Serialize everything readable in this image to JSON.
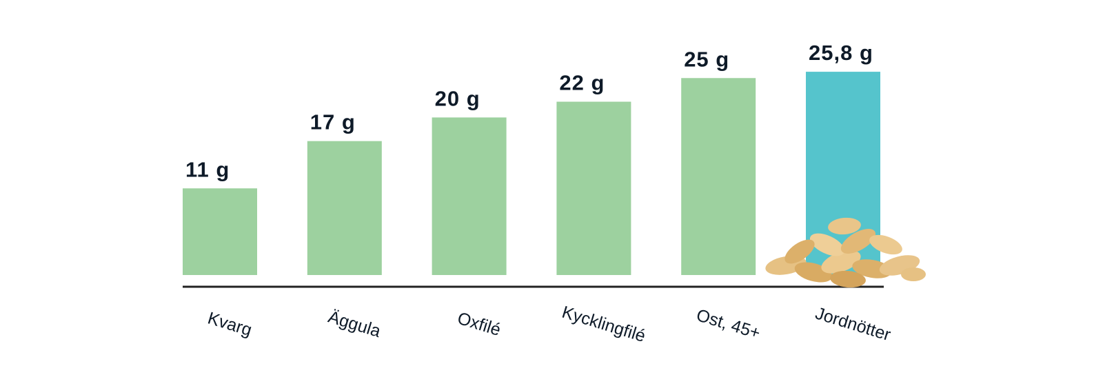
{
  "chart_data": {
    "type": "bar",
    "categories": [
      "Kvarg",
      "Äggula",
      "Oxfilé",
      "Kycklingfilé",
      "Ost, 45+",
      "Jordnötter"
    ],
    "values": [
      11,
      17,
      20,
      22,
      25,
      25.8
    ],
    "value_labels": [
      "11 g",
      "17 g",
      "20 g",
      "22 g",
      "25 g",
      "25,8 g"
    ],
    "colors": [
      "#9dd19f",
      "#9dd19f",
      "#9dd19f",
      "#9dd19f",
      "#9dd19f",
      "#55c4cc"
    ]
  }
}
